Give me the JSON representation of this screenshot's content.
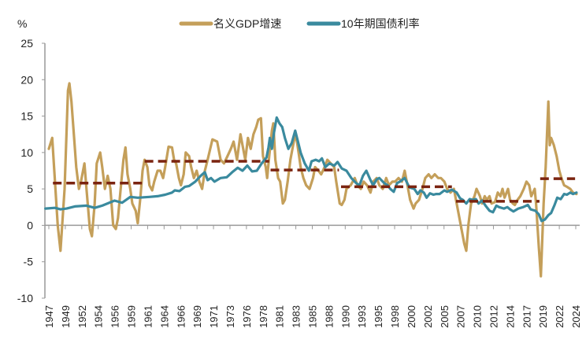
{
  "chart_data": {
    "type": "line",
    "title": "",
    "xlabel": "",
    "ylabel": "%",
    "ylim": [
      -10,
      25
    ],
    "xlim": [
      1946.4,
      2024.6
    ],
    "y_ticks": [
      25,
      20,
      15,
      10,
      5,
      0,
      -5,
      -10
    ],
    "x_tick_labels": [
      "1947",
      "1949",
      "1952",
      "1954",
      "1956",
      "1959",
      "1961",
      "1964",
      "1966",
      "1969",
      "1971",
      "1973",
      "1976",
      "1978",
      "1981",
      "1983",
      "1985",
      "1988",
      "1990",
      "1993",
      "1995",
      "1998",
      "2000",
      "2002",
      "2005",
      "2007",
      "2010",
      "2012",
      "2014",
      "2017",
      "2019",
      "2022",
      "2024"
    ],
    "grid": false,
    "legend_position": "top-center",
    "series": [
      {
        "name": "名义GDP增速",
        "color": "#C49F5A",
        "x": [
          1947.0,
          1947.5,
          1947.9,
          1948.3,
          1948.7,
          1949.3,
          1949.8,
          1950.0,
          1950.3,
          1950.7,
          1951.0,
          1951.4,
          1951.7,
          1952.2,
          1952.5,
          1953.0,
          1953.3,
          1953.7,
          1954.0,
          1954.5,
          1954.8,
          1955.2,
          1955.6,
          1956.0,
          1956.4,
          1956.8,
          1957.1,
          1957.5,
          1957.9,
          1958.2,
          1958.5,
          1958.9,
          1959.2,
          1959.7,
          1960.0,
          1960.4,
          1960.7,
          1961.0,
          1961.4,
          1961.7,
          1962.1,
          1962.4,
          1962.9,
          1963.3,
          1963.7,
          1964.0,
          1964.5,
          1965.0,
          1965.3,
          1965.6,
          1966.0,
          1966.3,
          1966.7,
          1967.0,
          1967.5,
          1967.8,
          1968.2,
          1968.6,
          1969.0,
          1969.4,
          1969.8,
          1970.2,
          1970.9,
          1971.6,
          1972.1,
          1972.6,
          1973.1,
          1973.6,
          1974.0,
          1974.5,
          1975.0,
          1975.3,
          1975.7,
          1976.1,
          1976.5,
          1976.9,
          1977.3,
          1977.6,
          1978.0,
          1978.3,
          1978.7,
          1978.9,
          1979.2,
          1979.6,
          1979.8,
          1980.1,
          1980.5,
          1980.8,
          1981.2,
          1981.5,
          1981.9,
          1982.3,
          1982.8,
          1983.1,
          1983.5,
          1983.8,
          1984.2,
          1984.6,
          1985.1,
          1985.6,
          1985.9,
          1986.4,
          1986.8,
          1987.3,
          1987.7,
          1988.2,
          1988.7,
          1989.0,
          1989.5,
          1989.8,
          1990.2,
          1990.5,
          1991.1,
          1991.7,
          1992.1,
          1992.6,
          1993.0,
          1993.5,
          1994.0,
          1994.4,
          1994.9,
          1995.3,
          1995.8,
          1996.3,
          1996.7,
          1997.2,
          1997.6,
          1998.1,
          1998.6,
          1999.0,
          1999.4,
          1999.8,
          2000.3,
          2000.6,
          2001.1,
          2001.6,
          2002.0,
          2002.5,
          2002.9,
          2003.4,
          2003.9,
          2004.3,
          2004.8,
          2005.2,
          2005.7,
          2006.2,
          2006.6,
          2007.0,
          2007.3,
          2007.7,
          2008.0,
          2008.3,
          2008.7,
          2009.2,
          2009.5,
          2010.0,
          2010.3,
          2010.7,
          2011.0,
          2011.4,
          2011.7,
          2012.2,
          2012.6,
          2013.0,
          2013.3,
          2013.6,
          2014.1,
          2014.4,
          2014.8,
          2015.1,
          2015.5,
          2015.9,
          2016.4,
          2016.8,
          2017.2,
          2017.5,
          2018.0,
          2018.2,
          2018.6,
          2018.9,
          2019.3,
          2019.6,
          2020.0,
          2020.2,
          2020.4,
          2020.8,
          2021.2,
          2021.6,
          2021.9,
          2022.3,
          2022.7,
          2023.2,
          2023.6,
          2024.1
        ],
        "y": [
          10.5,
          12,
          6,
          0,
          -3.5,
          5,
          18.5,
          19.5,
          17,
          12,
          8,
          5,
          6,
          8.5,
          5,
          -0.5,
          -1.5,
          3,
          8.5,
          10,
          8,
          5,
          6.8,
          5,
          0,
          -0.5,
          1,
          5,
          9,
          10.7,
          7,
          5,
          3,
          2,
          0.3,
          4,
          7.5,
          9,
          8,
          5.5,
          4.8,
          6,
          7.5,
          7.5,
          6.5,
          8,
          10.8,
          10.7,
          9,
          8.5,
          6.5,
          5.5,
          7,
          10,
          9.5,
          8,
          6.5,
          7.5,
          6,
          5,
          7.5,
          9,
          11.8,
          11.5,
          9,
          8.5,
          9.5,
          10.5,
          11.5,
          9,
          12.5,
          11,
          9,
          12,
          10.5,
          12.5,
          13.5,
          14.5,
          14.7,
          9.5,
          8,
          6.5,
          9.5,
          13,
          14,
          9,
          6.5,
          6,
          3,
          3.5,
          6,
          9,
          11.5,
          12.5,
          10,
          8,
          6.5,
          5.5,
          5,
          6.5,
          8,
          7.5,
          7,
          8,
          9,
          8.5,
          8,
          6,
          3,
          2.8,
          3.5,
          5,
          5.5,
          6.5,
          5.5,
          5,
          6,
          5.5,
          4.5,
          6,
          6.5,
          5.5,
          5,
          6.5,
          5.5,
          6,
          6,
          6.5,
          6,
          7.5,
          5.5,
          3.5,
          2.3,
          3,
          3.5,
          5,
          6.5,
          7,
          6.5,
          7,
          6.5,
          6.5,
          6,
          5,
          4.5,
          5,
          3,
          1,
          -0.5,
          -2.5,
          -3.5,
          0,
          3,
          4,
          5,
          4,
          3,
          4,
          3.5,
          4,
          3,
          3.2,
          4.5,
          4,
          5,
          3.8,
          5,
          3.5,
          3,
          2.8,
          3.5,
          4,
          5,
          6,
          5.5,
          4,
          5,
          3,
          -3,
          -7,
          3,
          8,
          17,
          11,
          12,
          11,
          9.5,
          7.5,
          6.5,
          5.5,
          5.3,
          5,
          4.5,
          4.3
        ]
      },
      {
        "name": "10年期国债利率",
        "color": "#3A8A9E",
        "x": [
          1946.5,
          1947.9,
          1948.7,
          1949.6,
          1950.8,
          1952.5,
          1953.7,
          1954.8,
          1956.6,
          1957.7,
          1958.9,
          1960.0,
          1961.7,
          1962.9,
          1964.0,
          1965.0,
          1965.4,
          1966.1,
          1966.9,
          1967.5,
          1968.4,
          1969.3,
          1969.8,
          1970.2,
          1970.7,
          1971.2,
          1972.1,
          1973.0,
          1973.8,
          1974.6,
          1975.3,
          1976.0,
          1976.7,
          1977.4,
          1978.1,
          1978.8,
          1979.1,
          1979.3,
          1979.6,
          1979.9,
          1980.3,
          1980.7,
          1981.1,
          1981.5,
          1982.0,
          1982.5,
          1983.0,
          1983.4,
          1983.8,
          1984.4,
          1985.0,
          1985.4,
          1986.0,
          1986.5,
          1986.9,
          1987.4,
          1988.0,
          1988.7,
          1989.2,
          1989.8,
          1990.5,
          1991.2,
          1991.9,
          1992.4,
          1992.9,
          1993.4,
          1994.0,
          1994.4,
          1994.9,
          1995.3,
          1996.0,
          1996.5,
          1996.9,
          1997.4,
          1997.9,
          1998.3,
          1999.0,
          1999.7,
          2000.4,
          2000.9,
          2001.3,
          2001.8,
          2002.2,
          2002.7,
          2003.2,
          2003.6,
          2004.1,
          2004.8,
          2005.2,
          2005.9,
          2006.6,
          2007.1,
          2007.5,
          2008.0,
          2008.5,
          2008.9,
          2009.4,
          2009.8,
          2010.3,
          2010.9,
          2011.4,
          2011.9,
          2012.4,
          2012.8,
          2013.5,
          2014.0,
          2014.4,
          2014.9,
          2015.6,
          2016.3,
          2017.0,
          2017.4,
          2018.1,
          2018.6,
          2019.0,
          2019.5,
          2020.0,
          2020.4,
          2020.9,
          2021.3,
          2021.8,
          2022.3,
          2022.7,
          2023.2,
          2023.6,
          2024.1
        ],
        "y": [
          2.3,
          2.4,
          2.2,
          2.3,
          2.6,
          2.7,
          2.4,
          2.7,
          3.4,
          3.1,
          3.9,
          3.8,
          3.9,
          4.0,
          4.2,
          4.5,
          4.8,
          4.7,
          5.3,
          5.4,
          6.0,
          6.9,
          7.3,
          6.2,
          6.5,
          6.0,
          6.5,
          6.6,
          7.3,
          7.9,
          7.5,
          8.2,
          7.4,
          7.5,
          8.5,
          9.3,
          10.7,
          12,
          10.5,
          12.7,
          14.8,
          14,
          13.5,
          12,
          10.5,
          11.3,
          13,
          11.5,
          10,
          8.5,
          7.5,
          8.8,
          9,
          8.8,
          9.2,
          8,
          8.5,
          8.2,
          8.7,
          7.8,
          7.5,
          6.5,
          5.8,
          5.5,
          6.8,
          7.5,
          6.2,
          5.5,
          6.3,
          6.5,
          5.8,
          5.5,
          5,
          4.6,
          5.8,
          6,
          6.5,
          5.2,
          5,
          4.3,
          4.8,
          4.5,
          3.8,
          4.4,
          4.2,
          4.3,
          4.3,
          4.8,
          4.6,
          4.9,
          4.5,
          3.7,
          3.5,
          3.0,
          3.6,
          3.5,
          3.6,
          3.0,
          3.4,
          2.6,
          2.0,
          1.8,
          2.7,
          2.5,
          2.3,
          2.5,
          2.2,
          1.9,
          2.3,
          2.5,
          2.8,
          2.2,
          2.0,
          1.5,
          0.6,
          0.8,
          1.4,
          1.7,
          2.8,
          3.8,
          3.6,
          4.3,
          4.2,
          4.5,
          4.3,
          4.5
        ]
      }
    ],
    "period_averages": {
      "color": "#7B2410",
      "style": "dashed",
      "segments": [
        {
          "x0": 1947.6,
          "x1": 1960.8,
          "y": 5.8
        },
        {
          "x0": 1961.0,
          "x1": 1979.2,
          "y": 8.8
        },
        {
          "x0": 1979.4,
          "x1": 1989.4,
          "y": 7.6
        },
        {
          "x0": 1989.7,
          "x1": 2005.9,
          "y": 5.3
        },
        {
          "x0": 2006.5,
          "x1": 2018.7,
          "y": 3.3
        },
        {
          "x0": 2018.8,
          "x1": 2023.9,
          "y": 6.4
        }
      ]
    }
  }
}
